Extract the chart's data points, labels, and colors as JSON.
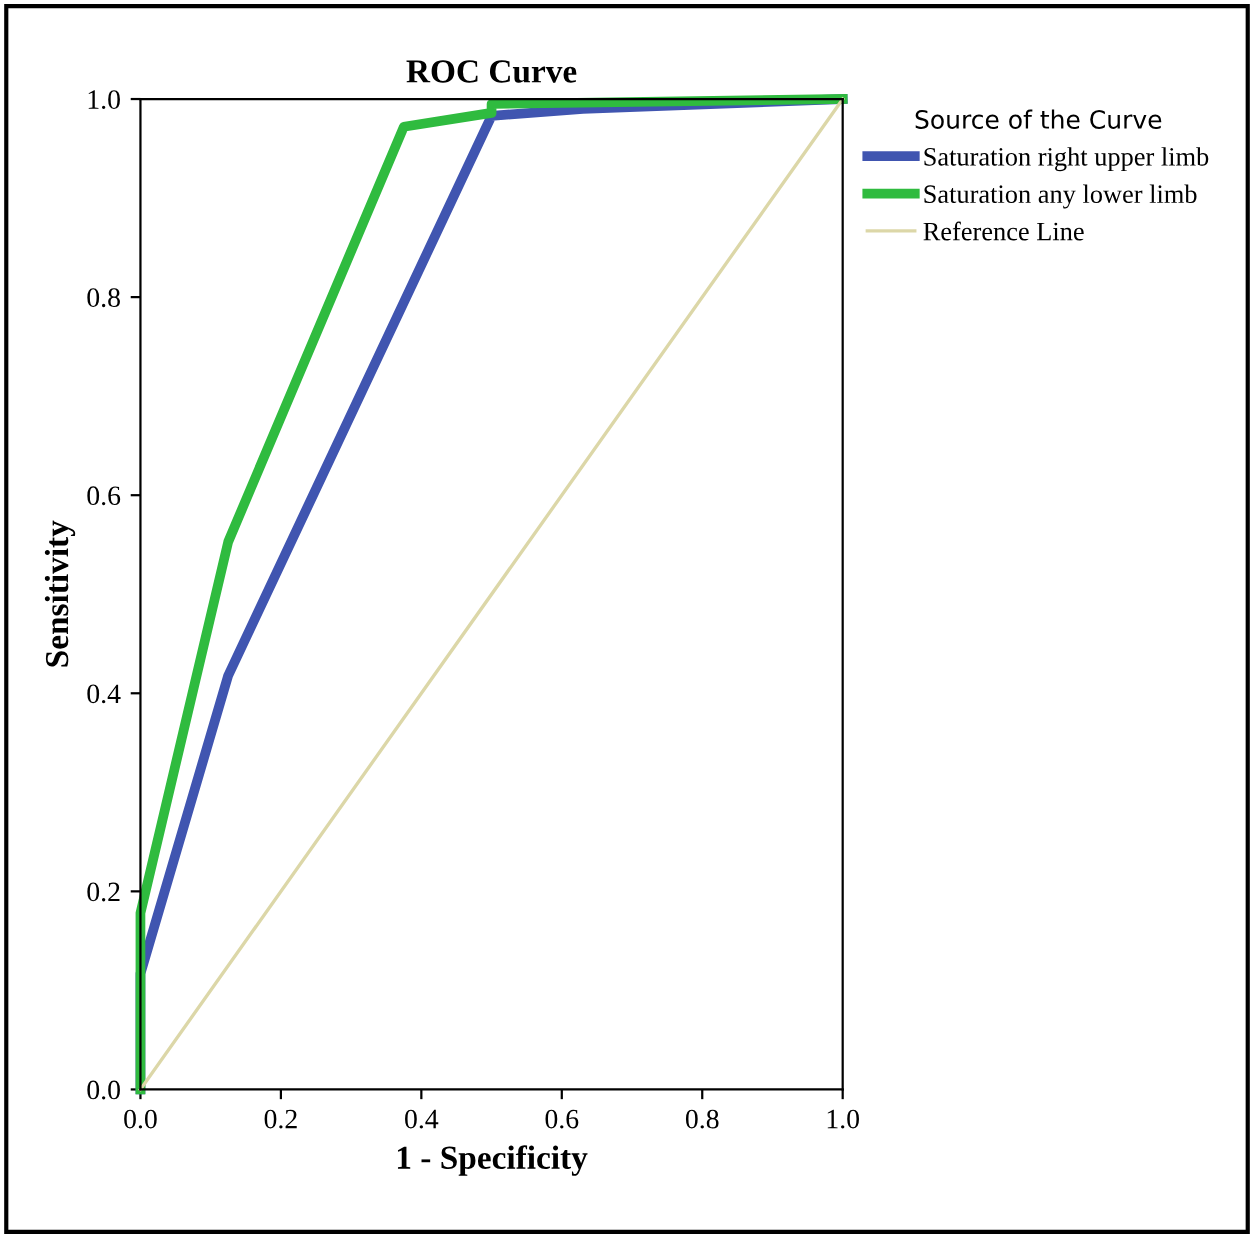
{
  "chart_data": {
    "type": "line",
    "title": "ROC Curve",
    "xlabel": "1 - Specificity",
    "ylabel": "Sensitivity",
    "legend_title": "Source of the Curve",
    "xlim": [
      0,
      1
    ],
    "ylim": [
      0,
      1
    ],
    "xticks": [
      {
        "value": 0,
        "label": "0.0"
      },
      0.2,
      0.4,
      0.6,
      0.8,
      {
        "value": 1,
        "label": "1.0"
      }
    ],
    "yticks": [
      {
        "value": 0,
        "label": "0.0"
      },
      0.2,
      0.4,
      0.6,
      0.8,
      {
        "value": 1,
        "label": "1.0"
      }
    ],
    "legend": "right",
    "grid": false,
    "marker": "none",
    "line_style": "solid",
    "series": [
      {
        "name": "Saturation right upper limb",
        "color": "#4055b0",
        "x": [
          0,
          0,
          0.125,
          0.5,
          0.63,
          1
        ],
        "values": [
          0,
          0.117,
          0.418,
          0.983,
          0.99,
          1
        ]
      },
      {
        "name": "Saturation any lower limb",
        "color": "#2fbb3f",
        "x": [
          0,
          0,
          0.125,
          0.375,
          0.5,
          0.5,
          1
        ],
        "values": [
          0,
          0.178,
          0.553,
          0.972,
          0.986,
          0.995,
          1
        ]
      },
      {
        "name": "Reference Line",
        "color": "#dcd7a8",
        "x": [
          0,
          1
        ],
        "values": [
          0,
          1
        ]
      }
    ]
  }
}
